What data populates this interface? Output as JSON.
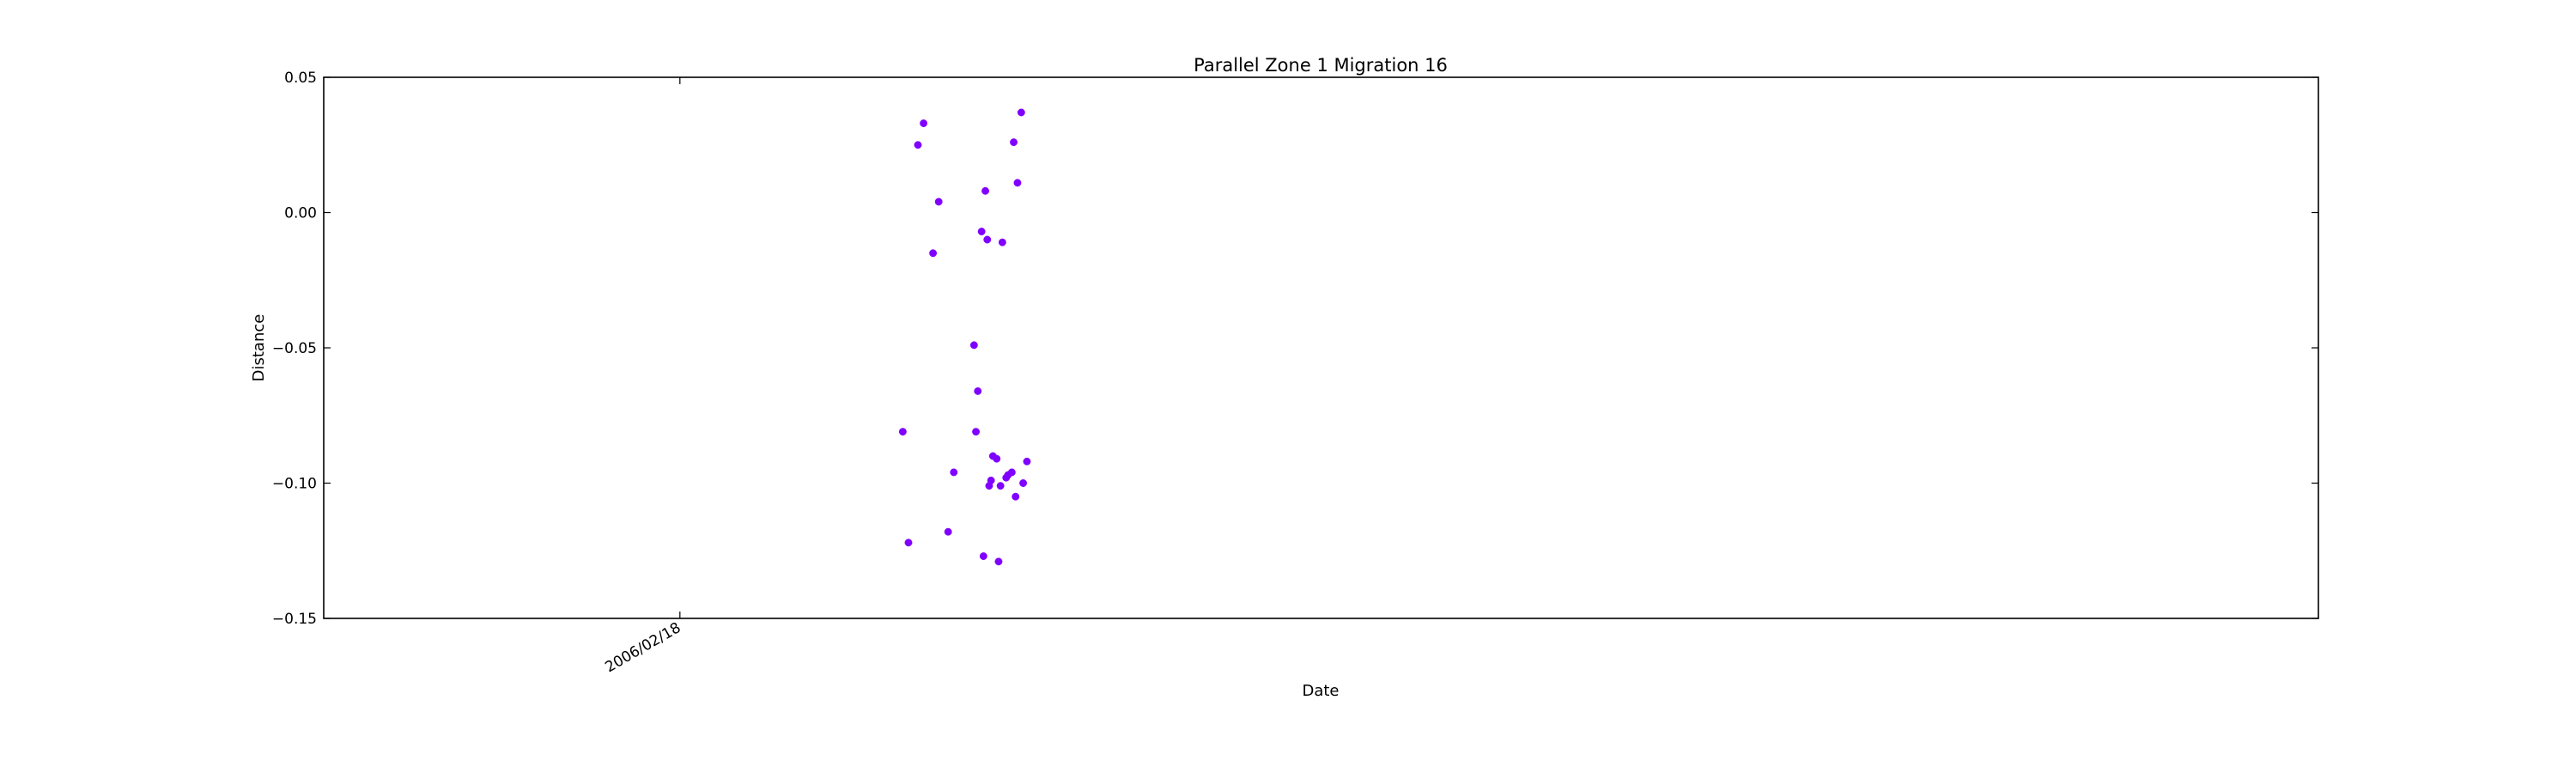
{
  "chart_data": {
    "type": "scatter",
    "title": "Parallel Zone 1 Migration 16",
    "xlabel": "Date",
    "ylabel": "Distance",
    "ylim": [
      -0.15,
      0.05
    ],
    "yticks": [
      {
        "value": 0.05,
        "label": "0.05"
      },
      {
        "value": 0.0,
        "label": "0.00"
      },
      {
        "value": -0.05,
        "label": "−0.05"
      },
      {
        "value": -0.1,
        "label": "−0.10"
      },
      {
        "value": -0.15,
        "label": "−0.15"
      }
    ],
    "xlim": [
      "2006-02-13",
      "2006-03-12"
    ],
    "xticks": [
      {
        "value": "2006-02-18",
        "label": "2006/02/18"
      }
    ],
    "grid": false,
    "marker_color": "#8000ff",
    "series": [
      {
        "points": [
          {
            "x": "2006-02-21",
            "y": -0.081
          },
          {
            "x": "2006-02-21",
            "y": 0.025
          },
          {
            "x": "2006-02-21",
            "y": -0.015
          },
          {
            "x": "2006-02-21",
            "y": -0.118
          },
          {
            "x": "2006-02-21",
            "y": -0.122
          },
          {
            "x": "2006-02-21",
            "y": 0.033
          },
          {
            "x": "2006-02-21",
            "y": 0.004
          },
          {
            "x": "2006-02-21",
            "y": -0.096
          },
          {
            "x": "2006-02-22",
            "y": 0.008
          },
          {
            "x": "2006-02-22",
            "y": -0.101
          },
          {
            "x": "2006-02-22",
            "y": -0.105
          },
          {
            "x": "2006-02-22",
            "y": -0.081
          },
          {
            "x": "2006-02-22",
            "y": -0.099
          },
          {
            "x": "2006-02-22",
            "y": -0.098
          },
          {
            "x": "2006-02-22",
            "y": 0.037
          },
          {
            "x": "2006-02-22",
            "y": -0.007
          },
          {
            "x": "2006-02-22",
            "y": -0.091
          },
          {
            "x": "2006-02-22",
            "y": -0.096
          },
          {
            "x": "2006-02-22",
            "y": -0.092
          },
          {
            "x": "2006-02-22",
            "y": -0.01
          },
          {
            "x": "2006-02-22",
            "y": -0.011
          },
          {
            "x": "2006-02-22",
            "y": 0.011
          },
          {
            "x": "2006-02-22",
            "y": -0.066
          },
          {
            "x": "2006-02-22",
            "y": -0.09
          },
          {
            "x": "2006-02-22",
            "y": -0.097
          },
          {
            "x": "2006-02-22",
            "y": -0.1
          },
          {
            "x": "2006-02-22",
            "y": -0.127
          },
          {
            "x": "2006-02-22",
            "y": -0.129
          },
          {
            "x": "2006-02-22",
            "y": 0.026
          },
          {
            "x": "2006-02-22",
            "y": -0.049
          },
          {
            "x": "2006-02-22",
            "y": -0.101
          }
        ]
      }
    ]
  }
}
